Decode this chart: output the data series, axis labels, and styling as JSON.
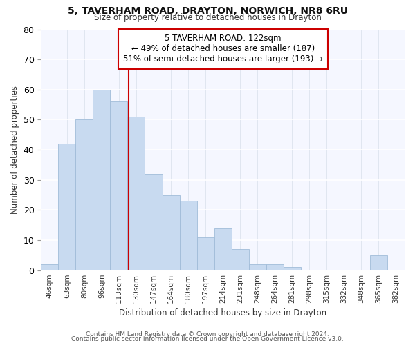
{
  "title1": "5, TAVERHAM ROAD, DRAYTON, NORWICH, NR8 6RU",
  "title2": "Size of property relative to detached houses in Drayton",
  "xlabel": "Distribution of detached houses by size in Drayton",
  "ylabel": "Number of detached properties",
  "categories": [
    "46sqm",
    "63sqm",
    "80sqm",
    "96sqm",
    "113sqm",
    "130sqm",
    "147sqm",
    "164sqm",
    "180sqm",
    "197sqm",
    "214sqm",
    "231sqm",
    "248sqm",
    "264sqm",
    "281sqm",
    "298sqm",
    "315sqm",
    "332sqm",
    "348sqm",
    "365sqm",
    "382sqm"
  ],
  "values": [
    2,
    42,
    50,
    60,
    56,
    51,
    32,
    25,
    23,
    11,
    14,
    7,
    2,
    2,
    1,
    0,
    0,
    0,
    0,
    5,
    0
  ],
  "bar_color": "#c8daf0",
  "bar_edge_color": "#a0bcd8",
  "vline_x": 4.55,
  "vline_color": "#cc0000",
  "annotation_text": "5 TAVERHAM ROAD: 122sqm\n← 49% of detached houses are smaller (187)\n51% of semi-detached houses are larger (193) →",
  "annotation_box_color": "#ffffff",
  "annotation_box_edge_color": "#cc0000",
  "ylim": [
    0,
    80
  ],
  "yticks": [
    0,
    10,
    20,
    30,
    40,
    50,
    60,
    70,
    80
  ],
  "footer1": "Contains HM Land Registry data © Crown copyright and database right 2024.",
  "footer2": "Contains public sector information licensed under the Open Government Licence v3.0.",
  "background_color": "#ffffff",
  "plot_bg_color": "#f5f7ff"
}
